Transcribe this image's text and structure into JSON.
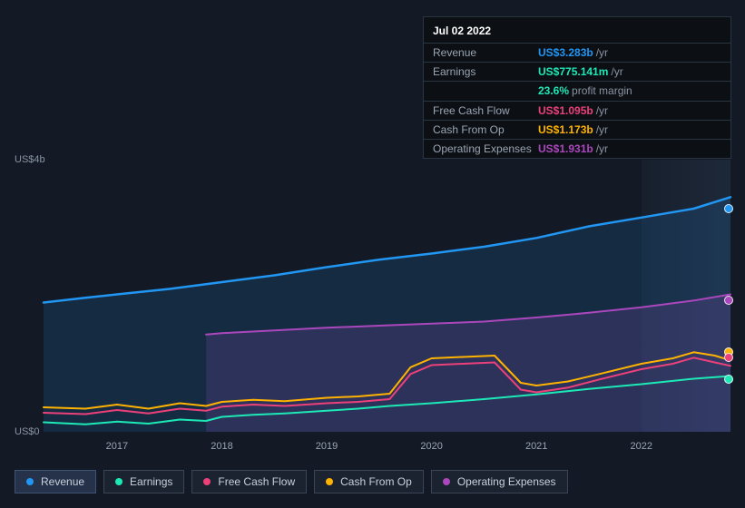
{
  "tooltip": {
    "date": "Jul 02 2022",
    "rows": [
      {
        "label": "Revenue",
        "value": "US$3.283b",
        "suffix": "/yr",
        "color": "#2196f3"
      },
      {
        "label": "Earnings",
        "value": "US$775.141m",
        "suffix": "/yr",
        "color": "#1de9b6",
        "sub": {
          "value": "23.6%",
          "suffix": "profit margin",
          "color": "#1de9b6"
        }
      },
      {
        "label": "Free Cash Flow",
        "value": "US$1.095b",
        "suffix": "/yr",
        "color": "#ec407a"
      },
      {
        "label": "Cash From Op",
        "value": "US$1.173b",
        "suffix": "/yr",
        "color": "#ffb300"
      },
      {
        "label": "Operating Expenses",
        "value": "US$1.931b",
        "suffix": "/yr",
        "color": "#ab47bc"
      }
    ]
  },
  "chart": {
    "type": "line-area",
    "background_color": "#131a25",
    "y_axis": {
      "min": 0,
      "max": 4.0,
      "ticks": [
        {
          "value": 0,
          "label": "US$0"
        },
        {
          "value": 4.0,
          "label": "US$4b"
        }
      ],
      "label_color": "#8a94a2",
      "label_fontsize": 11
    },
    "x_axis": {
      "min": 2016.3,
      "max": 2022.85,
      "ticks": [
        2017,
        2018,
        2019,
        2020,
        2021,
        2022
      ],
      "label_color": "#9aa5b3",
      "label_fontsize": 11
    },
    "cursor_x": 2022.5,
    "future_start_x": 2022.0,
    "series": [
      {
        "name": "Operating Expenses",
        "color": "#ab47bc",
        "fill": "rgba(171,71,188,0.18)",
        "line_width": 2,
        "start_x": 2017.85,
        "points": [
          [
            2017.85,
            1.43
          ],
          [
            2018.0,
            1.45
          ],
          [
            2018.5,
            1.49
          ],
          [
            2019.0,
            1.53
          ],
          [
            2019.5,
            1.56
          ],
          [
            2020.0,
            1.59
          ],
          [
            2020.5,
            1.62
          ],
          [
            2021.0,
            1.68
          ],
          [
            2021.5,
            1.75
          ],
          [
            2022.0,
            1.83
          ],
          [
            2022.5,
            1.93
          ],
          [
            2022.85,
            2.02
          ]
        ]
      },
      {
        "name": "Revenue",
        "color": "#2196f3",
        "fill": "rgba(33,150,243,0.14)",
        "line_width": 2.5,
        "points": [
          [
            2016.3,
            1.9
          ],
          [
            2016.7,
            1.97
          ],
          [
            2017.0,
            2.02
          ],
          [
            2017.5,
            2.1
          ],
          [
            2018.0,
            2.2
          ],
          [
            2018.5,
            2.3
          ],
          [
            2019.0,
            2.42
          ],
          [
            2019.5,
            2.53
          ],
          [
            2020.0,
            2.62
          ],
          [
            2020.5,
            2.72
          ],
          [
            2021.0,
            2.85
          ],
          [
            2021.5,
            3.02
          ],
          [
            2022.0,
            3.15
          ],
          [
            2022.5,
            3.28
          ],
          [
            2022.85,
            3.45
          ]
        ]
      },
      {
        "name": "Cash From Op",
        "color": "#ffb300",
        "fill": "none",
        "line_width": 2,
        "points": [
          [
            2016.3,
            0.36
          ],
          [
            2016.7,
            0.34
          ],
          [
            2017.0,
            0.4
          ],
          [
            2017.3,
            0.34
          ],
          [
            2017.6,
            0.42
          ],
          [
            2017.85,
            0.38
          ],
          [
            2018.0,
            0.44
          ],
          [
            2018.3,
            0.47
          ],
          [
            2018.6,
            0.45
          ],
          [
            2019.0,
            0.5
          ],
          [
            2019.3,
            0.52
          ],
          [
            2019.6,
            0.56
          ],
          [
            2019.8,
            0.95
          ],
          [
            2020.0,
            1.08
          ],
          [
            2020.3,
            1.1
          ],
          [
            2020.6,
            1.12
          ],
          [
            2020.85,
            0.72
          ],
          [
            2021.0,
            0.68
          ],
          [
            2021.3,
            0.74
          ],
          [
            2021.6,
            0.85
          ],
          [
            2022.0,
            1.0
          ],
          [
            2022.3,
            1.08
          ],
          [
            2022.5,
            1.17
          ],
          [
            2022.7,
            1.12
          ],
          [
            2022.85,
            1.05
          ]
        ]
      },
      {
        "name": "Free Cash Flow",
        "color": "#ec407a",
        "fill": "none",
        "line_width": 2,
        "points": [
          [
            2016.3,
            0.28
          ],
          [
            2016.7,
            0.26
          ],
          [
            2017.0,
            0.32
          ],
          [
            2017.3,
            0.27
          ],
          [
            2017.6,
            0.34
          ],
          [
            2017.85,
            0.31
          ],
          [
            2018.0,
            0.37
          ],
          [
            2018.3,
            0.4
          ],
          [
            2018.6,
            0.38
          ],
          [
            2019.0,
            0.42
          ],
          [
            2019.3,
            0.44
          ],
          [
            2019.6,
            0.48
          ],
          [
            2019.8,
            0.85
          ],
          [
            2020.0,
            0.98
          ],
          [
            2020.3,
            1.0
          ],
          [
            2020.6,
            1.02
          ],
          [
            2020.85,
            0.62
          ],
          [
            2021.0,
            0.58
          ],
          [
            2021.3,
            0.65
          ],
          [
            2021.6,
            0.77
          ],
          [
            2022.0,
            0.92
          ],
          [
            2022.3,
            1.0
          ],
          [
            2022.5,
            1.09
          ],
          [
            2022.7,
            1.02
          ],
          [
            2022.85,
            0.97
          ]
        ]
      },
      {
        "name": "Earnings",
        "color": "#1de9b6",
        "fill": "none",
        "line_width": 2,
        "points": [
          [
            2016.3,
            0.14
          ],
          [
            2016.7,
            0.11
          ],
          [
            2017.0,
            0.15
          ],
          [
            2017.3,
            0.12
          ],
          [
            2017.6,
            0.18
          ],
          [
            2017.85,
            0.16
          ],
          [
            2018.0,
            0.22
          ],
          [
            2018.3,
            0.25
          ],
          [
            2018.6,
            0.27
          ],
          [
            2019.0,
            0.31
          ],
          [
            2019.3,
            0.34
          ],
          [
            2019.6,
            0.38
          ],
          [
            2020.0,
            0.42
          ],
          [
            2020.5,
            0.48
          ],
          [
            2021.0,
            0.55
          ],
          [
            2021.5,
            0.63
          ],
          [
            2022.0,
            0.7
          ],
          [
            2022.5,
            0.78
          ],
          [
            2022.85,
            0.82
          ]
        ]
      }
    ],
    "markers_at_cursor": [
      {
        "series": "Revenue",
        "y": 3.283,
        "color": "#2196f3"
      },
      {
        "series": "Operating Expenses",
        "y": 1.931,
        "color": "#ab47bc"
      },
      {
        "series": "Cash From Op",
        "y": 1.173,
        "color": "#ffb300"
      },
      {
        "series": "Free Cash Flow",
        "y": 1.095,
        "color": "#ec407a"
      },
      {
        "series": "Earnings",
        "y": 0.775,
        "color": "#1de9b6"
      }
    ]
  },
  "legend": {
    "items": [
      {
        "label": "Revenue",
        "color": "#2196f3",
        "active": true
      },
      {
        "label": "Earnings",
        "color": "#1de9b6",
        "active": false
      },
      {
        "label": "Free Cash Flow",
        "color": "#ec407a",
        "active": false
      },
      {
        "label": "Cash From Op",
        "color": "#ffb300",
        "active": false
      },
      {
        "label": "Operating Expenses",
        "color": "#ab47bc",
        "active": false
      }
    ]
  }
}
